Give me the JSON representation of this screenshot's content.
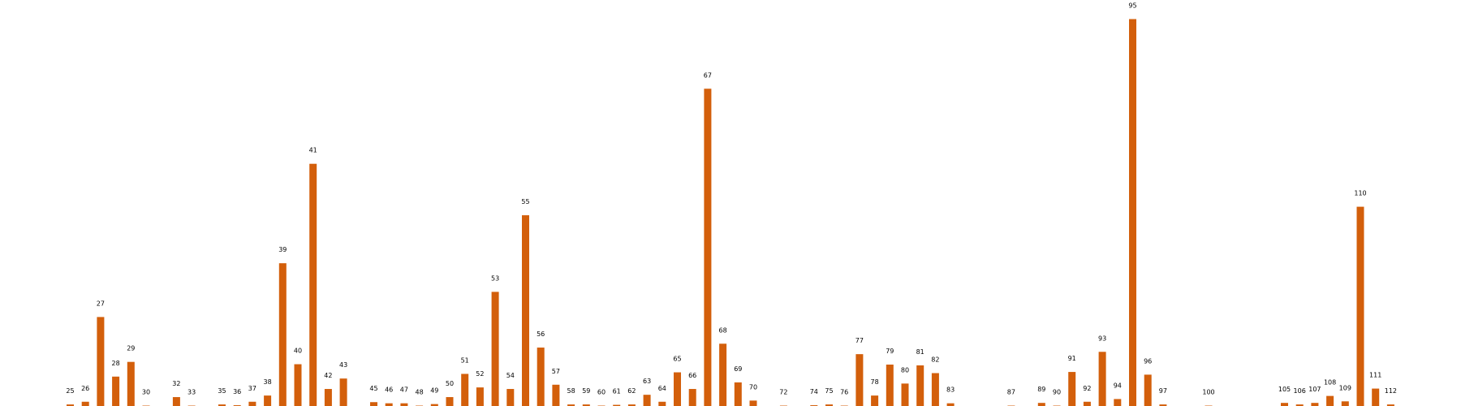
{
  "chart_data": {
    "type": "bar",
    "color": "#d35f0b",
    "ylim": [
      0,
      100
    ],
    "grid": false,
    "legend": "none",
    "x": [
      25,
      26,
      27,
      28,
      29,
      30,
      32,
      33,
      35,
      36,
      37,
      38,
      39,
      40,
      41,
      42,
      43,
      45,
      46,
      47,
      48,
      49,
      50,
      51,
      52,
      53,
      54,
      55,
      56,
      57,
      58,
      59,
      60,
      61,
      62,
      63,
      64,
      65,
      66,
      67,
      68,
      69,
      70,
      72,
      74,
      75,
      76,
      77,
      78,
      79,
      80,
      81,
      82,
      83,
      87,
      89,
      90,
      91,
      92,
      93,
      94,
      95,
      96,
      97,
      100,
      105,
      106,
      107,
      108,
      109,
      110,
      111,
      112
    ],
    "values": [
      0.4,
      1.1,
      23.0,
      7.6,
      11.4,
      0.1,
      2.3,
      0.1,
      0.4,
      0.2,
      1.1,
      2.7,
      36.9,
      10.8,
      62.6,
      4.4,
      7.1,
      1.0,
      0.7,
      0.7,
      0.1,
      0.5,
      2.3,
      8.3,
      4.8,
      29.5,
      4.4,
      49.3,
      15.1,
      5.5,
      0.4,
      0.4,
      0.1,
      0.3,
      0.4,
      2.9,
      1.1,
      8.7,
      4.4,
      82.0,
      16.1,
      6.1,
      1.4,
      0.1,
      0.2,
      0.4,
      0.1,
      13.4,
      2.7,
      10.7,
      5.8,
      10.5,
      8.5,
      0.7,
      0.1,
      0.8,
      0.1,
      8.8,
      1.1,
      14.0,
      1.8,
      100.0,
      8.1,
      0.4,
      0.1,
      0.8,
      0.4,
      0.8,
      2.6,
      1.2,
      51.5,
      4.5,
      0.4
    ]
  }
}
